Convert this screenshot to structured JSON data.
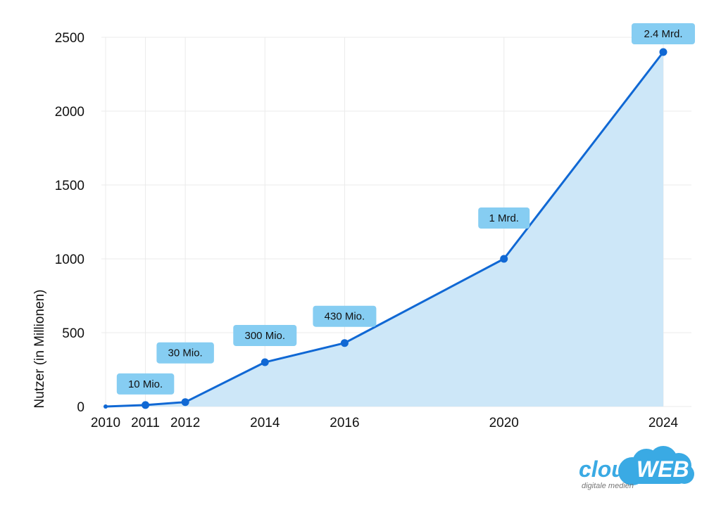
{
  "chart_data": {
    "type": "area",
    "title": "",
    "xlabel": "",
    "ylabel": "Nutzer (in Millionen)",
    "x": [
      2010,
      2011,
      2012,
      2014,
      2016,
      2020,
      2024
    ],
    "xticks": [
      "2010",
      "2011",
      "2012",
      "2014",
      "2016",
      "2020",
      "2024"
    ],
    "values": [
      0,
      10,
      30,
      300,
      430,
      1000,
      2400
    ],
    "yticks": [
      "0",
      "500",
      "1000",
      "1500",
      "2000",
      "2500"
    ],
    "ylim": [
      0,
      2500
    ],
    "xlim": [
      2010,
      2024
    ],
    "grid": true,
    "annotations": [
      {
        "x": 2011,
        "y": 10,
        "label": "10 Mio."
      },
      {
        "x": 2012,
        "y": 30,
        "label": "30 Mio."
      },
      {
        "x": 2014,
        "y": 300,
        "label": "300 Mio."
      },
      {
        "x": 2016,
        "y": 430,
        "label": "430 Mio."
      },
      {
        "x": 2020,
        "y": 1000,
        "label": "1 Mrd."
      },
      {
        "x": 2024,
        "y": 2400,
        "label": "2.4 Mrd."
      }
    ],
    "colors": {
      "line": "#1068d4",
      "fill": "#cde7f8",
      "marker": "#1068d4",
      "label_bg": "#86cdf2",
      "grid": "#ebebeb"
    }
  },
  "logo": {
    "brand_main": "cloud",
    "brand_accent": "WEB",
    "tagline": "digitale medien",
    "colors": {
      "cloud": "#3aaae4",
      "text": "#ffffff",
      "tagline": "#777777"
    }
  }
}
